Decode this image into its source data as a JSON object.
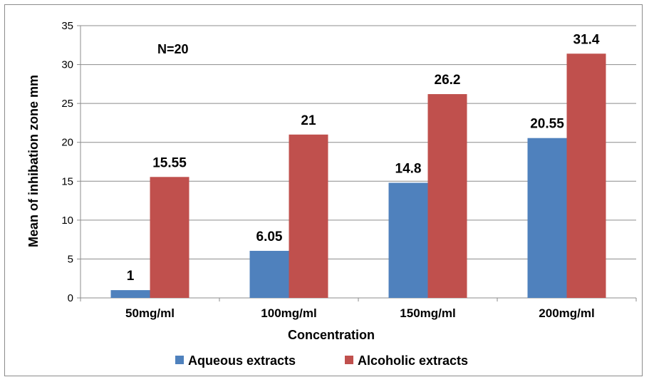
{
  "chart_data": {
    "type": "bar",
    "categories": [
      "50mg/ml",
      "100mg/ml",
      "150mg/ml",
      "200mg/ml"
    ],
    "series": [
      {
        "name": "Aqueous extracts",
        "values": [
          1,
          6.05,
          14.8,
          20.55
        ],
        "color": "#4f81bd"
      },
      {
        "name": "Alcoholic extracts",
        "values": [
          15.55,
          21,
          26.2,
          31.4
        ],
        "color": "#c0504d"
      }
    ],
    "data_labels": [
      [
        "1",
        "6.05",
        "14.8",
        "20.55"
      ],
      [
        "15.55",
        "21",
        "26.2",
        "31.4"
      ]
    ],
    "title": "",
    "xlabel": "Concentration",
    "ylabel": "Mean of inhibation zone mm",
    "ylim": [
      0,
      35
    ],
    "yticks": [
      0,
      5,
      10,
      15,
      20,
      25,
      30,
      35
    ],
    "annotation": "N=20",
    "grid": true,
    "legend_position": "bottom"
  }
}
